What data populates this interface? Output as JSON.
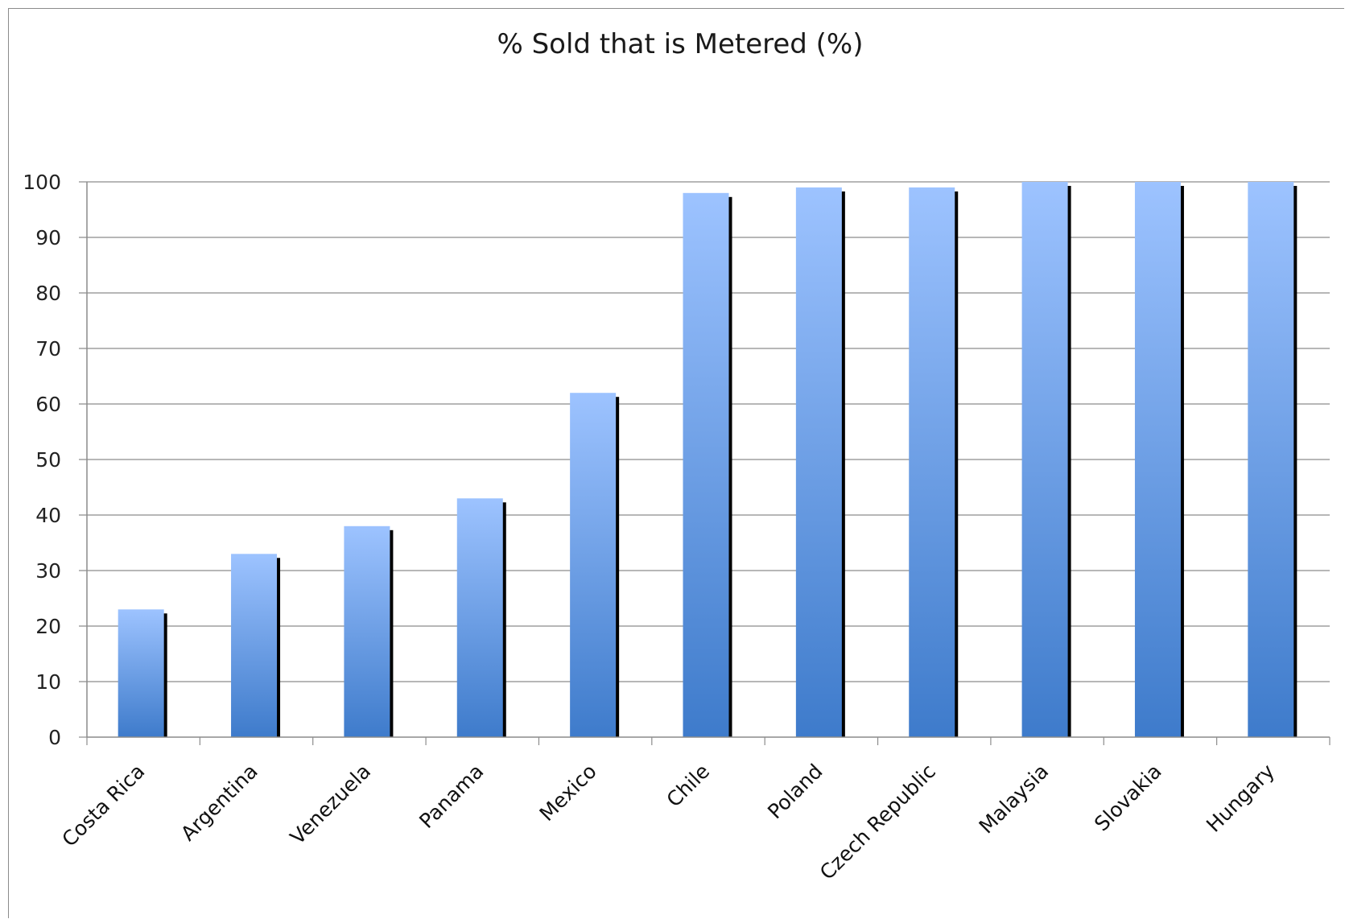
{
  "chart_data": {
    "type": "bar",
    "title": "% Sold that is Metered (%)",
    "xlabel": "",
    "ylabel": "",
    "categories": [
      "Costa Rica",
      "Argentina",
      "Venezuela",
      "Panama",
      "Mexico",
      "Chile",
      "Poland",
      "Czech Republic",
      "Malaysia",
      "Slovakia",
      "Hungary"
    ],
    "values": [
      23,
      33,
      38,
      43,
      62,
      98,
      99,
      99,
      100,
      100,
      100
    ],
    "ylim": [
      0,
      100
    ],
    "yticks": [
      0,
      10,
      20,
      30,
      40,
      50,
      60,
      70,
      80,
      90,
      100
    ],
    "grid": true,
    "legend": "none",
    "colors": {
      "bar_top": "#9dc3ff",
      "bar_bottom": "#3e7bcb",
      "bar_shadow": "#000000",
      "gridline": "#8c8c8c",
      "axis": "#8c8c8c"
    }
  }
}
